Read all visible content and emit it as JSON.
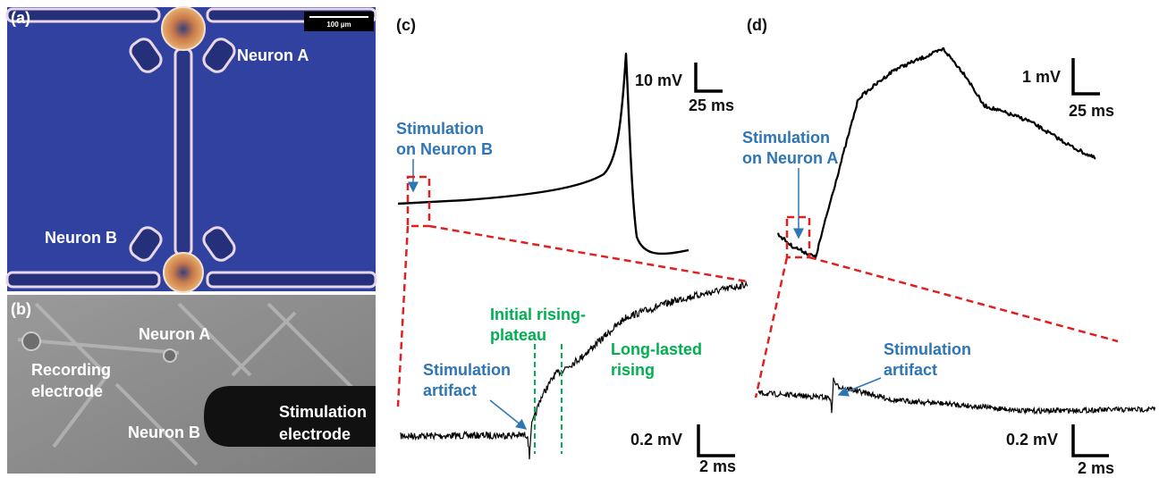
{
  "panel_a": {
    "label": "(a)",
    "scale_bar": "100 µm",
    "neuron_a": "Neuron A",
    "neuron_b": "Neuron B"
  },
  "panel_b": {
    "label": "(b)",
    "neuron_a": "Neuron A",
    "recording": [
      "Recording",
      "electrode"
    ],
    "neuron_b": "Neuron B",
    "stimulation": [
      "Stimulation",
      "electrode"
    ]
  },
  "panel_c": {
    "label": "(c)",
    "top_scale_y": "10 mV",
    "top_scale_x": "25 ms",
    "stimulation": [
      "Stimulation",
      "on Neuron B"
    ],
    "initial": [
      "Initial rising-",
      "plateau"
    ],
    "long": [
      "Long-lasted",
      "rising"
    ],
    "artifact": [
      "Stimulation",
      "artifact"
    ],
    "bottom_scale_y": "0.2 mV",
    "bottom_scale_x": "2 ms"
  },
  "panel_d": {
    "label": "(d)",
    "top_scale_y": "1 mV",
    "top_scale_x": "25 ms",
    "stimulation": [
      "Stimulation",
      "on Neuron A"
    ],
    "artifact": [
      "Stimulation",
      "artifact"
    ],
    "bottom_scale_y": "0.2 mV",
    "bottom_scale_x": "2 ms"
  }
}
